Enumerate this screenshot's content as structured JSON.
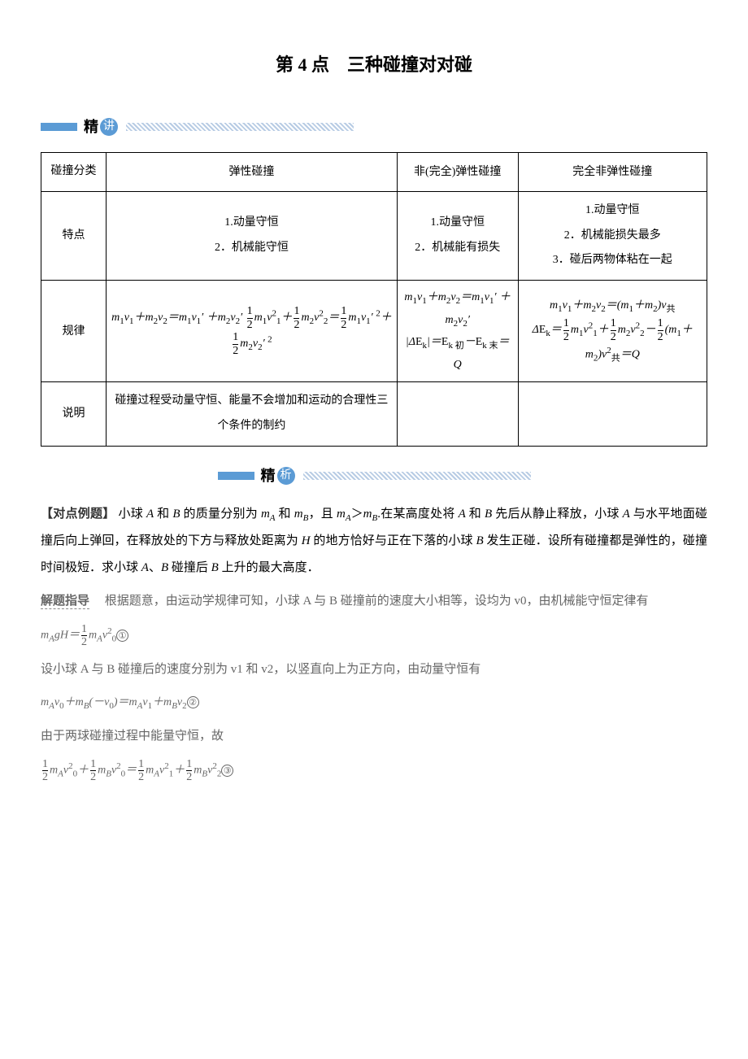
{
  "title": "第 4 点　三种碰撞对对碰",
  "section1": {
    "label_char1": "精",
    "label_char2": "讲"
  },
  "section2": {
    "label_char1": "精",
    "label_char2": "析"
  },
  "table": {
    "r1c0": "碰撞分类",
    "r1c1": "弹性碰撞",
    "r1c2": "非(完全)弹性碰撞",
    "r1c3": "完全非弹性碰撞",
    "r2c0": "特点",
    "r2c1a": "1.动量守恒",
    "r2c1b": "2．机械能守恒",
    "r2c2a": "1.动量守恒",
    "r2c2b": "2．机械能有损失",
    "r2c3a": "1.动量守恒",
    "r2c3b": "2．机械能损失最多",
    "r2c3c": "3．碰后两物体粘在一起",
    "r3c0": "规律",
    "r4c0": "说明",
    "r4c1": "碰撞过程受动量守恒、能量不会增加和运动的合理性三个条件的制约"
  },
  "example": {
    "label": "【对点例题】",
    "text": "小球 A 和 B 的质量分别为 mA 和 mB，且 mA＞mB.在某高度处将 A 和 B 先后从静止释放，小球 A 与水平地面碰撞后向上弹回，在释放处的下方与释放处距离为 H 的地方恰好与正在下落的小球 B 发生正碰．设所有碰撞都是弹性的，碰撞时间极短．求小球 A、B 碰撞后 B 上升的最大高度．"
  },
  "solution": {
    "label": "解题指导",
    "intro": "根据题意，由运动学规律可知，小球 A 与 B 碰撞前的速度大小相等，设均为 v0，由机械能守恒定律有",
    "line2": "设小球 A 与 B 碰撞后的速度分别为 v1 和 v2，以竖直向上为正方向，由动量守恒有",
    "line3": "由于两球碰撞过程中能量守恒，故"
  },
  "colors": {
    "accent": "#5b9bd5",
    "text": "#000000",
    "gray": "#666666",
    "hatch": "#b8cce4"
  }
}
